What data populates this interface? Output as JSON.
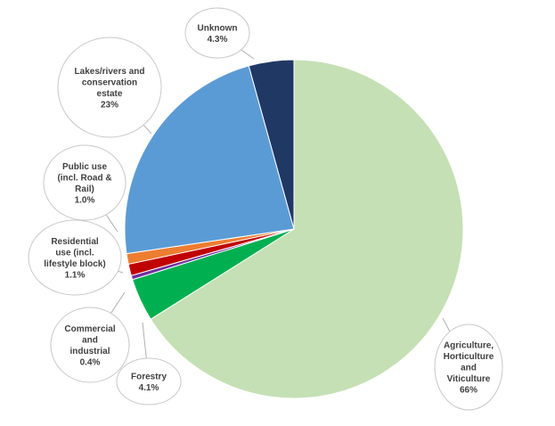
{
  "chart_data": {
    "type": "pie",
    "title": "",
    "legend": "none",
    "slices": [
      {
        "label": "Agriculture, Horticulture and Viticulture",
        "value": 66,
        "display": "66%",
        "color": "#c5e0b4",
        "lines": [
          "Agriculture,",
          "Horticulture",
          "and",
          "Viticulture",
          "66%"
        ]
      },
      {
        "label": "Forestry",
        "value": 4.1,
        "display": "4.1%",
        "color": "#00b050",
        "lines": [
          "Forestry",
          "4.1%"
        ]
      },
      {
        "label": "Commercial and industrial",
        "value": 0.4,
        "display": "0.4%",
        "color": "#7030a0",
        "lines": [
          "Commercial",
          "and",
          "industrial",
          "0.4%"
        ]
      },
      {
        "label": "Residential use (incl. lifestyle block)",
        "value": 1.1,
        "display": "1.1%",
        "color": "#c00000",
        "lines": [
          "Residential",
          "use (incl.",
          "lifestyle block)",
          "1.1%"
        ]
      },
      {
        "label": "Public use (incl. Road & Rail)",
        "value": 1.0,
        "display": "1.0%",
        "color": "#ed7d31",
        "lines": [
          "Public use",
          "(incl. Road &",
          "Rail)",
          "1.0%"
        ]
      },
      {
        "label": "Lakes/rivers and conservation estate",
        "value": 23,
        "display": "23%",
        "color": "#5b9bd5",
        "lines": [
          "Lakes/rivers and",
          "conservation",
          "estate",
          "23%"
        ]
      },
      {
        "label": "Unknown",
        "value": 4.3,
        "display": "4.3%",
        "color": "#203864",
        "lines": [
          "Unknown",
          "4.3%"
        ]
      }
    ]
  }
}
